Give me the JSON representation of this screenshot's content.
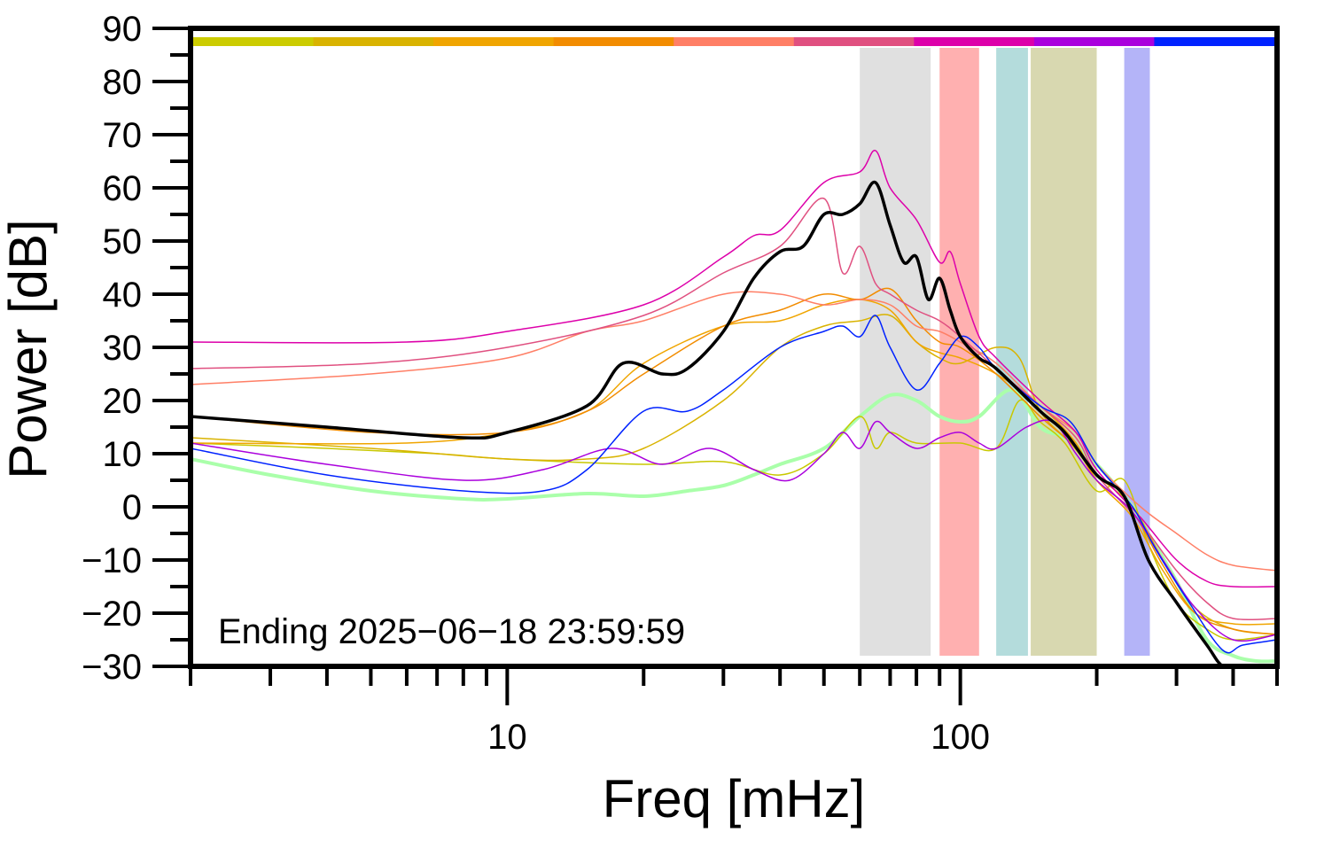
{
  "chart_data": {
    "type": "line",
    "xlabel": "Freq [mHz]",
    "ylabel": "Power [dB]",
    "x_scale": "log",
    "xlim": [
      2,
      500
    ],
    "ylim": [
      -30,
      90
    ],
    "x_ticks": [
      {
        "value": 10,
        "label": "10"
      },
      {
        "value": 100,
        "label": "100"
      }
    ],
    "y_ticks": [
      {
        "value": 90,
        "label": "90"
      },
      {
        "value": 80,
        "label": "80"
      },
      {
        "value": 70,
        "label": "70"
      },
      {
        "value": 60,
        "label": "60"
      },
      {
        "value": 50,
        "label": "50"
      },
      {
        "value": 40,
        "label": "40"
      },
      {
        "value": 30,
        "label": "30"
      },
      {
        "value": 20,
        "label": "20"
      },
      {
        "value": 10,
        "label": "10"
      },
      {
        "value": 0,
        "label": "0"
      },
      {
        "value": -10,
        "label": "−10"
      },
      {
        "value": -20,
        "label": "−20"
      },
      {
        "value": -30,
        "label": "−30"
      }
    ],
    "annotation": "Ending 2025−06−18 23:59:59",
    "grid": false,
    "legend": "none",
    "top_color_bar": [
      "#cccc00",
      "#d9b300",
      "#f0a500",
      "#f28c00",
      "#ff7f66",
      "#e05080",
      "#dd00aa",
      "#aa00dd",
      "#0022ff"
    ],
    "bands": [
      {
        "x0": 60,
        "x1": 86,
        "color": "#e0e0e0"
      },
      {
        "x0": 90,
        "x1": 110,
        "color": "#ffb0b0"
      },
      {
        "x0": 120,
        "x1": 141,
        "color": "#b4dcdc"
      },
      {
        "x0": 143,
        "x1": 200,
        "color": "#d8d8b0"
      },
      {
        "x0": 230,
        "x1": 262,
        "color": "#b4b4f8"
      }
    ],
    "series": [
      {
        "color": "#aaffaa",
        "width": 4,
        "points": [
          [
            2,
            9
          ],
          [
            3,
            6
          ],
          [
            5,
            3
          ],
          [
            8,
            1.5
          ],
          [
            10,
            1.5
          ],
          [
            15,
            2.5
          ],
          [
            20,
            2
          ],
          [
            25,
            3
          ],
          [
            30,
            4
          ],
          [
            35,
            6
          ],
          [
            40,
            8
          ],
          [
            50,
            11
          ],
          [
            60,
            17
          ],
          [
            70,
            21
          ],
          [
            80,
            20
          ],
          [
            90,
            17
          ],
          [
            100,
            16
          ],
          [
            110,
            17
          ],
          [
            130,
            22
          ],
          [
            150,
            15
          ],
          [
            170,
            13
          ],
          [
            200,
            8
          ],
          [
            240,
            0
          ],
          [
            260,
            -5
          ],
          [
            300,
            -14
          ],
          [
            350,
            -25
          ],
          [
            400,
            -28
          ],
          [
            450,
            -29
          ],
          [
            500,
            -29
          ]
        ]
      },
      {
        "color": "#c8c800",
        "width": 1.5,
        "points": [
          [
            2,
            12
          ],
          [
            4,
            11
          ],
          [
            7,
            10
          ],
          [
            10,
            9
          ],
          [
            20,
            8
          ],
          [
            30,
            8.5
          ],
          [
            40,
            6
          ],
          [
            50,
            10
          ],
          [
            60,
            17
          ],
          [
            65,
            11
          ],
          [
            70,
            14
          ],
          [
            80,
            12
          ],
          [
            100,
            12
          ],
          [
            120,
            11
          ],
          [
            135,
            20
          ],
          [
            150,
            16
          ],
          [
            170,
            12
          ],
          [
            200,
            3
          ],
          [
            230,
            5
          ],
          [
            260,
            -7
          ],
          [
            300,
            -18
          ],
          [
            350,
            -23
          ],
          [
            400,
            -25
          ],
          [
            500,
            -24
          ]
        ]
      },
      {
        "color": "#d9b300",
        "width": 1.5,
        "points": [
          [
            2,
            13
          ],
          [
            5,
            11
          ],
          [
            10,
            9
          ],
          [
            15,
            9
          ],
          [
            20,
            11
          ],
          [
            30,
            20
          ],
          [
            40,
            30
          ],
          [
            50,
            34
          ],
          [
            60,
            35
          ],
          [
            70,
            36
          ],
          [
            80,
            31
          ],
          [
            90,
            28
          ],
          [
            100,
            27
          ],
          [
            120,
            30
          ],
          [
            135,
            28
          ],
          [
            150,
            18
          ],
          [
            175,
            12
          ],
          [
            200,
            6
          ],
          [
            240,
            0
          ],
          [
            280,
            -10
          ],
          [
            330,
            -19
          ],
          [
            400,
            -23
          ],
          [
            500,
            -24
          ]
        ]
      },
      {
        "color": "#f0a500",
        "width": 1.5,
        "points": [
          [
            2,
            12
          ],
          [
            6,
            12
          ],
          [
            10,
            14
          ],
          [
            15,
            18
          ],
          [
            20,
            27
          ],
          [
            30,
            34
          ],
          [
            40,
            35
          ],
          [
            50,
            38
          ],
          [
            60,
            39
          ],
          [
            70,
            37
          ],
          [
            80,
            31
          ],
          [
            90,
            29
          ],
          [
            100,
            28
          ],
          [
            120,
            25
          ],
          [
            150,
            19
          ],
          [
            180,
            12
          ],
          [
            200,
            5
          ],
          [
            240,
            -2
          ],
          [
            280,
            -12
          ],
          [
            330,
            -20
          ],
          [
            400,
            -22
          ],
          [
            500,
            -22
          ]
        ]
      },
      {
        "color": "#f28c00",
        "width": 1.5,
        "points": [
          [
            2,
            17
          ],
          [
            5,
            14
          ],
          [
            10,
            14
          ],
          [
            15,
            18
          ],
          [
            20,
            25
          ],
          [
            30,
            34
          ],
          [
            40,
            37
          ],
          [
            50,
            40
          ],
          [
            60,
            39
          ],
          [
            70,
            41
          ],
          [
            80,
            35
          ],
          [
            90,
            31
          ],
          [
            100,
            30
          ],
          [
            120,
            25
          ],
          [
            150,
            17
          ],
          [
            180,
            11
          ],
          [
            200,
            5
          ],
          [
            240,
            -1
          ],
          [
            280,
            -11
          ],
          [
            330,
            -20
          ],
          [
            400,
            -23
          ],
          [
            500,
            -24
          ]
        ]
      },
      {
        "color": "#ff7f66",
        "width": 1.5,
        "points": [
          [
            2,
            23
          ],
          [
            5,
            25
          ],
          [
            10,
            28
          ],
          [
            15,
            33
          ],
          [
            20,
            35
          ],
          [
            30,
            40
          ],
          [
            40,
            40
          ],
          [
            50,
            38
          ],
          [
            60,
            39
          ],
          [
            70,
            38
          ],
          [
            80,
            34
          ],
          [
            90,
            33
          ],
          [
            100,
            31
          ],
          [
            120,
            27
          ],
          [
            150,
            19
          ],
          [
            180,
            14
          ],
          [
            200,
            8
          ],
          [
            250,
            0
          ],
          [
            300,
            -5
          ],
          [
            350,
            -9
          ],
          [
            400,
            -11
          ],
          [
            500,
            -12
          ]
        ]
      },
      {
        "color": "#e05080",
        "width": 1.5,
        "points": [
          [
            2,
            26
          ],
          [
            5,
            27
          ],
          [
            10,
            30
          ],
          [
            20,
            36
          ],
          [
            30,
            44
          ],
          [
            40,
            49
          ],
          [
            50,
            58
          ],
          [
            55,
            44
          ],
          [
            60,
            49
          ],
          [
            65,
            42
          ],
          [
            70,
            40
          ],
          [
            80,
            37
          ],
          [
            90,
            35
          ],
          [
            100,
            32
          ],
          [
            120,
            26
          ],
          [
            150,
            19
          ],
          [
            180,
            13
          ],
          [
            200,
            6
          ],
          [
            250,
            -3
          ],
          [
            300,
            -12
          ],
          [
            350,
            -18
          ],
          [
            400,
            -21
          ],
          [
            500,
            -21
          ]
        ]
      },
      {
        "color": "#dd00aa",
        "width": 1.5,
        "points": [
          [
            2,
            31
          ],
          [
            6,
            31
          ],
          [
            10,
            33
          ],
          [
            20,
            38
          ],
          [
            30,
            47
          ],
          [
            35,
            51
          ],
          [
            40,
            52
          ],
          [
            50,
            61
          ],
          [
            60,
            63
          ],
          [
            65,
            67
          ],
          [
            70,
            60
          ],
          [
            80,
            54
          ],
          [
            90,
            46
          ],
          [
            95,
            48
          ],
          [
            100,
            42
          ],
          [
            110,
            32
          ],
          [
            120,
            28
          ],
          [
            150,
            20
          ],
          [
            180,
            14
          ],
          [
            200,
            7
          ],
          [
            250,
            -2
          ],
          [
            300,
            -10
          ],
          [
            350,
            -14
          ],
          [
            400,
            -15
          ],
          [
            500,
            -15
          ]
        ]
      },
      {
        "color": "#aa00dd",
        "width": 1.5,
        "points": [
          [
            2,
            12
          ],
          [
            4,
            8
          ],
          [
            8,
            5
          ],
          [
            12,
            7
          ],
          [
            17,
            11
          ],
          [
            22,
            8
          ],
          [
            28,
            11
          ],
          [
            35,
            7
          ],
          [
            42,
            5
          ],
          [
            50,
            10
          ],
          [
            55,
            14
          ],
          [
            60,
            11
          ],
          [
            65,
            16
          ],
          [
            70,
            14
          ],
          [
            80,
            11
          ],
          [
            90,
            13
          ],
          [
            100,
            14
          ],
          [
            110,
            12
          ],
          [
            120,
            11
          ],
          [
            140,
            15
          ],
          [
            160,
            16
          ],
          [
            180,
            10
          ],
          [
            200,
            5
          ],
          [
            240,
            -1
          ],
          [
            280,
            -10
          ],
          [
            330,
            -19
          ],
          [
            400,
            -25
          ],
          [
            500,
            -24
          ]
        ]
      },
      {
        "color": "#0022ff",
        "width": 1.5,
        "points": [
          [
            2,
            11
          ],
          [
            4,
            6
          ],
          [
            8,
            3
          ],
          [
            12,
            3
          ],
          [
            15,
            7
          ],
          [
            20,
            18
          ],
          [
            25,
            18
          ],
          [
            30,
            22
          ],
          [
            40,
            30
          ],
          [
            50,
            33
          ],
          [
            55,
            34
          ],
          [
            60,
            32
          ],
          [
            65,
            36
          ],
          [
            70,
            30
          ],
          [
            80,
            22
          ],
          [
            90,
            27
          ],
          [
            100,
            32
          ],
          [
            110,
            30
          ],
          [
            120,
            26
          ],
          [
            150,
            19
          ],
          [
            175,
            16
          ],
          [
            200,
            8
          ],
          [
            240,
            0
          ],
          [
            270,
            -8
          ],
          [
            320,
            -18
          ],
          [
            380,
            -27
          ],
          [
            420,
            -26
          ],
          [
            500,
            -25
          ]
        ]
      },
      {
        "color": "#000000",
        "width": 3.5,
        "points": [
          [
            2,
            17
          ],
          [
            4,
            15
          ],
          [
            8,
            13
          ],
          [
            10,
            14
          ],
          [
            15,
            19
          ],
          [
            18,
            27
          ],
          [
            22,
            25
          ],
          [
            25,
            26
          ],
          [
            30,
            33
          ],
          [
            35,
            43
          ],
          [
            40,
            48
          ],
          [
            45,
            49
          ],
          [
            50,
            55
          ],
          [
            55,
            55
          ],
          [
            60,
            57
          ],
          [
            65,
            61
          ],
          [
            70,
            53
          ],
          [
            75,
            46
          ],
          [
            80,
            47
          ],
          [
            85,
            39
          ],
          [
            90,
            43
          ],
          [
            95,
            37
          ],
          [
            100,
            32
          ],
          [
            110,
            28
          ],
          [
            120,
            26
          ],
          [
            150,
            18
          ],
          [
            170,
            14
          ],
          [
            200,
            6
          ],
          [
            230,
            2
          ],
          [
            260,
            -10
          ],
          [
            300,
            -18
          ],
          [
            350,
            -26
          ],
          [
            380,
            -30
          ],
          [
            420,
            -30
          ],
          [
            500,
            -30
          ]
        ]
      }
    ]
  }
}
